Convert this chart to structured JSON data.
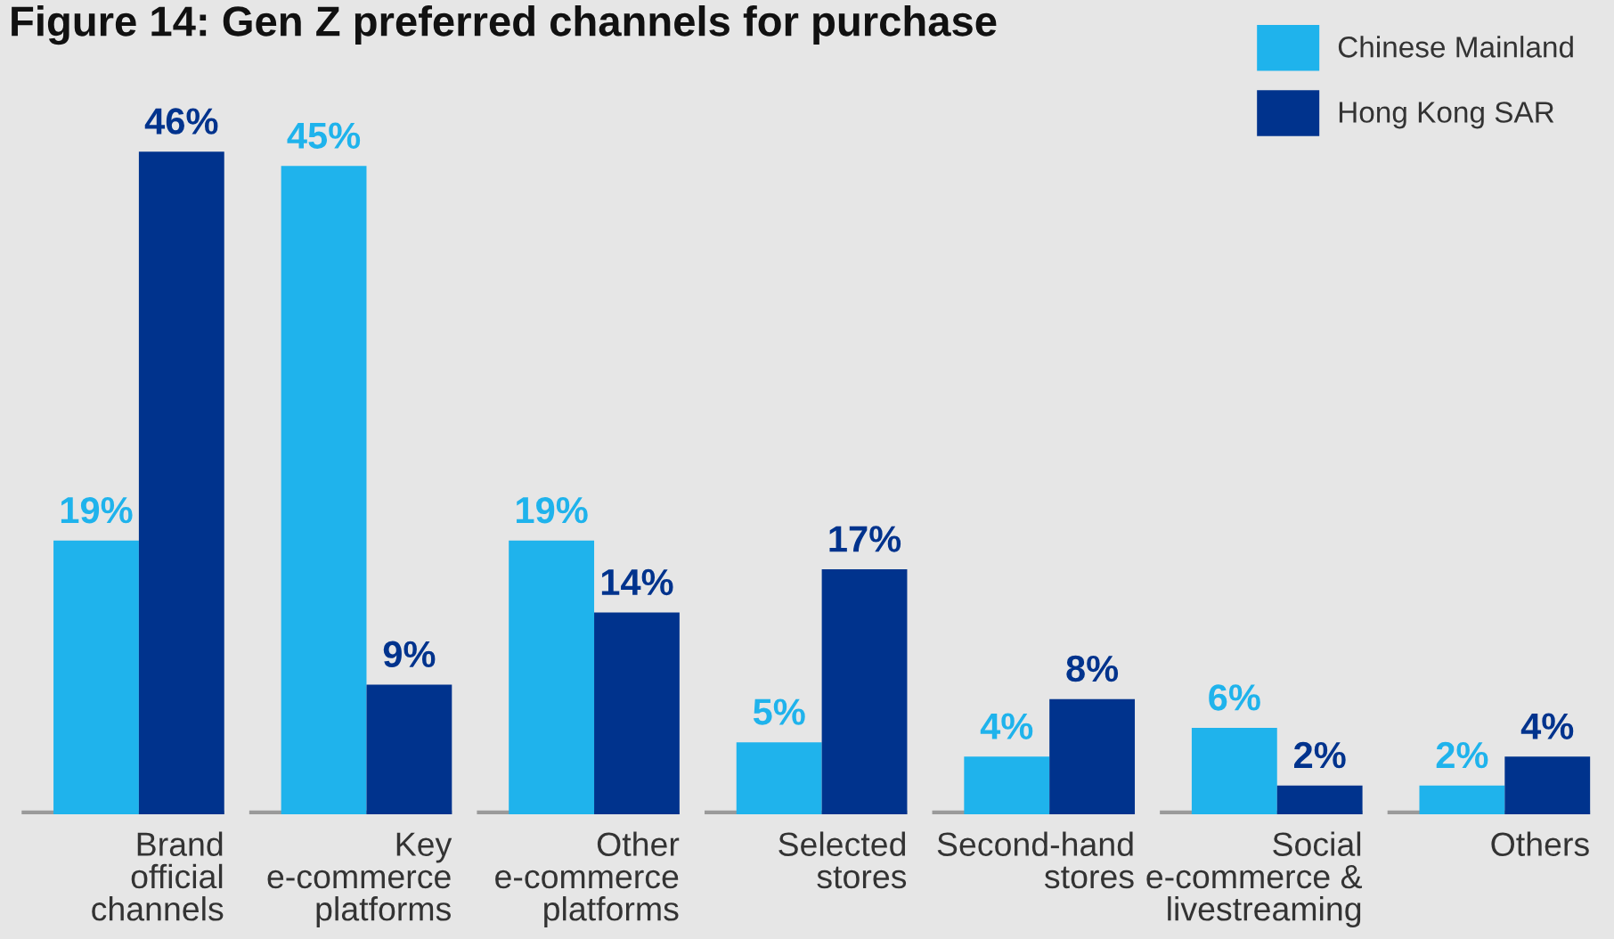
{
  "chart_data": {
    "type": "bar",
    "title": "Figure 14: Gen Z preferred channels for purchase",
    "categories": [
      "Brand\nofficial\nchannels",
      "Key\ne-commerce\nplatforms",
      "Other\ne-commerce\nplatforms",
      "Selected\nstores",
      "Second-hand\nstores",
      "Social\ne-commerce &\nlivestreaming",
      "Others"
    ],
    "series": [
      {
        "name": "Chinese Mainland",
        "color": "#1fb3ec",
        "values": [
          19,
          45,
          19,
          5,
          4,
          6,
          2
        ],
        "value_labels": [
          "19%",
          "45%",
          "19%",
          "5%",
          "4%",
          "6%",
          "2%"
        ]
      },
      {
        "name": "Hong Kong SAR",
        "color": "#00338d",
        "values": [
          46,
          9,
          14,
          17,
          8,
          2,
          4
        ],
        "value_labels": [
          "46%",
          "9%",
          "14%",
          "17%",
          "8%",
          "2%",
          "4%"
        ]
      }
    ],
    "legend": "top right",
    "tick_labels": "x"
  }
}
